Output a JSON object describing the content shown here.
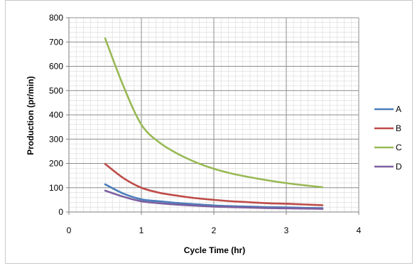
{
  "chart_data": {
    "type": "line",
    "title": "",
    "xlabel": "Cycle Time (hr)",
    "ylabel": "Production  (pr/min)",
    "xlim": [
      0,
      4
    ],
    "ylim": [
      0,
      800
    ],
    "x_ticks": [
      "0",
      "1",
      "2",
      "3",
      "4"
    ],
    "y_ticks": [
      "0",
      "100",
      "200",
      "300",
      "400",
      "500",
      "600",
      "700",
      "800"
    ],
    "grid": true,
    "legend_position": "right",
    "x": [
      0.5,
      0.75,
      1.0,
      1.25,
      1.5,
      1.75,
      2.0,
      2.25,
      2.5,
      2.75,
      3.0,
      3.25,
      3.5
    ],
    "series": [
      {
        "name": "A",
        "color": "#4a7ebb",
        "values": [
          114,
          76,
          52,
          44,
          37,
          32,
          27,
          24,
          22,
          20,
          19,
          17,
          16
        ]
      },
      {
        "name": "B",
        "color": "#be4b48",
        "values": [
          198,
          140,
          100,
          79,
          67,
          57,
          50,
          44,
          40,
          36,
          34,
          31,
          28
        ]
      },
      {
        "name": "C",
        "color": "#98b954",
        "values": [
          715,
          520,
          360,
          286,
          240,
          205,
          178,
          158,
          143,
          130,
          119,
          110,
          102
        ]
      },
      {
        "name": "D",
        "color": "#7d60a0",
        "values": [
          88,
          63,
          44,
          36,
          30,
          26,
          22,
          20,
          18,
          16,
          15,
          14,
          13
        ]
      }
    ]
  }
}
